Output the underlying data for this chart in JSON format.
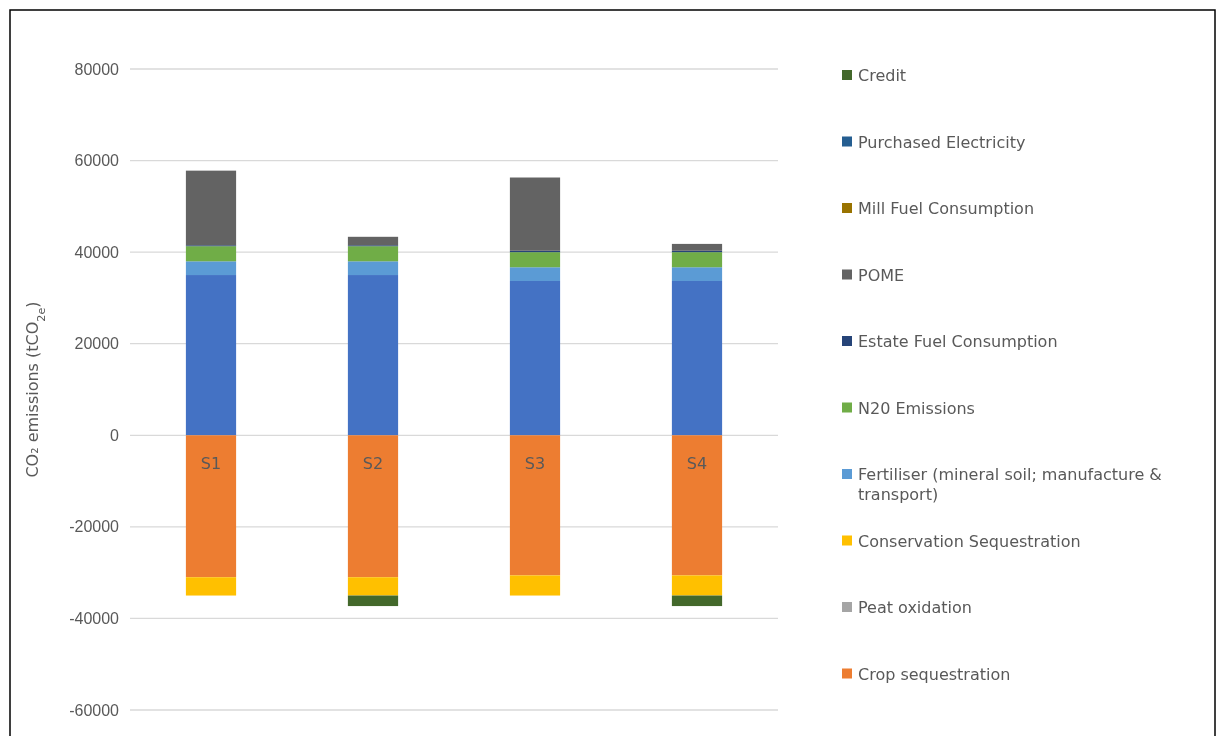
{
  "chart_data": {
    "type": "bar",
    "stacked": true,
    "ylabel": "CO₂ emissions (tCO$_{2e}$)",
    "categories": [
      "S1",
      "S2",
      "S3",
      "S4"
    ],
    "series": [
      {
        "color": "#4472c4",
        "values": [
          35000,
          35000,
          33700,
          33700
        ]
      },
      {
        "name": "Crop sequestration",
        "color": "#ed7d31",
        "values": [
          -31000,
          -31000,
          -30600,
          -30600
        ]
      },
      {
        "name": "Peat oxidation",
        "color": "#a5a5a5",
        "values": [
          0,
          0,
          0,
          0
        ]
      },
      {
        "name": "Conservation Sequestration",
        "color": "#ffc000",
        "values": [
          -4000,
          -4000,
          -4400,
          -4400
        ]
      },
      {
        "name": "Fertiliser (mineral soil; manufacture & transport)",
        "color": "#5b9bd5",
        "values": [
          3000,
          3000,
          3000,
          3000
        ]
      },
      {
        "name": "N20 Emissions",
        "color": "#70ad47",
        "values": [
          3300,
          3300,
          3300,
          3300
        ]
      },
      {
        "name": "Estate Fuel Consumption",
        "color": "#264478",
        "values": [
          200,
          200,
          300,
          300
        ]
      },
      {
        "name": "POME",
        "color": "#636363",
        "values": [
          16300,
          1850,
          16000,
          1500
        ]
      },
      {
        "name": "Mill Fuel Consumption",
        "color": "#997300",
        "values": [
          0,
          0,
          0,
          0
        ]
      },
      {
        "name": "Purchased Electricity",
        "color": "#255e91",
        "values": [
          0,
          0,
          0,
          0
        ]
      },
      {
        "name": "Credit",
        "color": "#43682b",
        "values": [
          0,
          -2300,
          0,
          -2300
        ]
      }
    ],
    "ylim": [
      -60000,
      80000
    ],
    "yticks": [
      -60000,
      -40000,
      -20000,
      0,
      20000,
      40000,
      60000,
      80000
    ],
    "grid": "y",
    "legend": "right"
  }
}
